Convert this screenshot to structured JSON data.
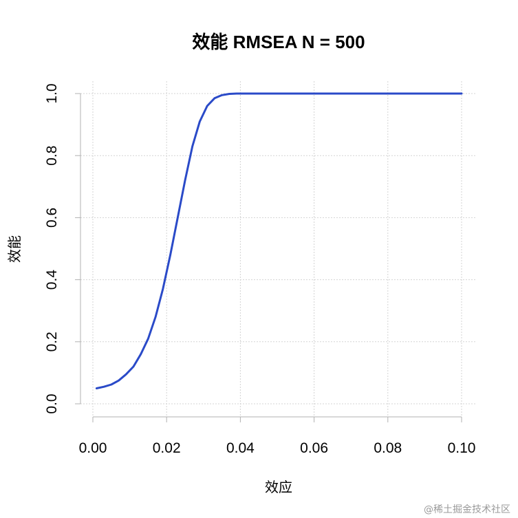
{
  "chart_data": {
    "type": "line",
    "title": "效能 RMSEA  N =  500",
    "xlabel": "效应",
    "ylabel": "效能",
    "xlim": [
      0.0,
      0.1
    ],
    "ylim": [
      0.0,
      1.0
    ],
    "x_ticks": [
      "0.00",
      "0.02",
      "0.04",
      "0.06",
      "0.08",
      "0.10"
    ],
    "y_ticks": [
      "0.0",
      "0.2",
      "0.4",
      "0.6",
      "0.8",
      "1.0"
    ],
    "grid": true,
    "line_color": "#2a4ac8",
    "series": [
      {
        "x": [
          0.001,
          0.003,
          0.005,
          0.007,
          0.009,
          0.011,
          0.013,
          0.015,
          0.017,
          0.019,
          0.021,
          0.023,
          0.025,
          0.027,
          0.029,
          0.031,
          0.033,
          0.035,
          0.037,
          0.039,
          0.041,
          0.045,
          0.05,
          0.06,
          0.07,
          0.08,
          0.09,
          0.1
        ],
        "values": [
          0.05,
          0.055,
          0.062,
          0.075,
          0.095,
          0.12,
          0.16,
          0.21,
          0.28,
          0.37,
          0.48,
          0.6,
          0.72,
          0.83,
          0.91,
          0.96,
          0.985,
          0.995,
          0.999,
          1.0,
          1.0,
          1.0,
          1.0,
          1.0,
          1.0,
          1.0,
          1.0,
          1.0
        ]
      }
    ]
  },
  "watermark": "@稀土掘金技术社区"
}
